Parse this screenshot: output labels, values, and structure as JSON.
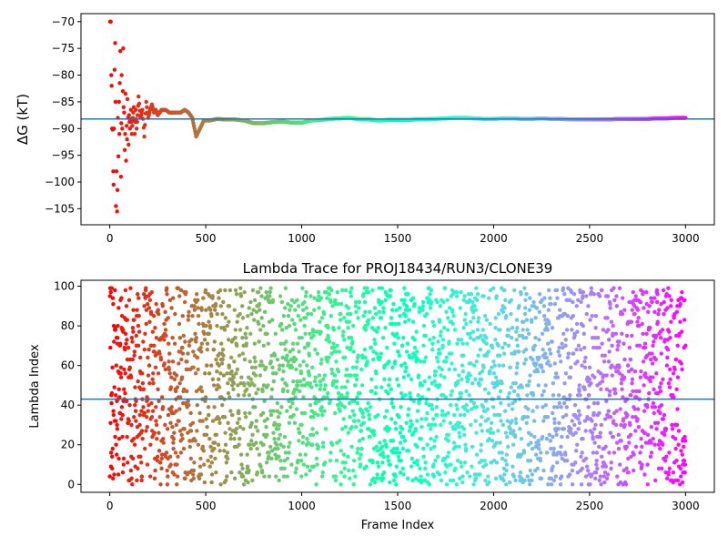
{
  "chart_data": [
    {
      "type": "scatter",
      "title": "",
      "xlabel": "",
      "ylabel": "ΔG (kT)",
      "xlim": [
        -150,
        3150
      ],
      "ylim": [
        -108,
        -68.5
      ],
      "xticks": [
        0,
        500,
        1000,
        1500,
        2000,
        2500,
        3000
      ],
      "yticks": [
        -105,
        -100,
        -95,
        -90,
        -85,
        -80,
        -75,
        -70
      ],
      "ytick_labels": [
        "−105",
        "−100",
        "−95",
        "−90",
        "−85",
        "−80",
        "−75",
        "−70"
      ],
      "hline": -88.2,
      "hline_color": "#1f77b4",
      "colormap": "rainbow (red → violet with frame index)",
      "frames": [
        0,
        3000
      ],
      "series": [
        {
          "points": [
            [
              2,
              -70
            ],
            [
              5,
              -70
            ],
            [
              8,
              -80
            ],
            [
              10,
              -82
            ],
            [
              12,
              -90
            ],
            [
              15,
              -90.2
            ],
            [
              18,
              -98
            ],
            [
              20,
              -100.5
            ],
            [
              22,
              -90
            ],
            [
              25,
              -79
            ],
            [
              28,
              -74
            ],
            [
              30,
              -85
            ],
            [
              32,
              -104.5
            ],
            [
              35,
              -98
            ],
            [
              38,
              -105.5
            ],
            [
              40,
              -101.5
            ],
            [
              42,
              -88
            ],
            [
              45,
              -95.2
            ],
            [
              48,
              -85
            ],
            [
              50,
              -91
            ],
            [
              52,
              -81.5
            ],
            [
              55,
              -75.5
            ],
            [
              58,
              -99
            ],
            [
              60,
              -89
            ],
            [
              62,
              -80
            ],
            [
              65,
              -90
            ],
            [
              68,
              -83
            ],
            [
              70,
              -75
            ],
            [
              72,
              -86
            ],
            [
              75,
              -87
            ],
            [
              78,
              -94
            ],
            [
              80,
              -91
            ],
            [
              82,
              -83.5
            ],
            [
              85,
              -96
            ],
            [
              88,
              -89.5
            ],
            [
              90,
              -92
            ],
            [
              92,
              -84.5
            ],
            [
              95,
              -88
            ],
            [
              98,
              -93
            ],
            [
              100,
              -87.5
            ],
            [
              105,
              -90
            ],
            [
              110,
              -86.5
            ],
            [
              115,
              -91
            ],
            [
              120,
              -88
            ],
            [
              125,
              -86
            ],
            [
              130,
              -91
            ],
            [
              135,
              -86.5
            ],
            [
              140,
              -90
            ],
            [
              145,
              -87.5
            ],
            [
              150,
              -84
            ],
            [
              160,
              -88
            ],
            [
              170,
              -86.5
            ],
            [
              180,
              -91.5
            ],
            [
              190,
              -85
            ],
            [
              200,
              -88
            ],
            [
              210,
              -86.5
            ],
            [
              220,
              -85.5
            ],
            [
              230,
              -87
            ],
            [
              240,
              -86.5
            ],
            [
              250,
              -87.5
            ],
            [
              270,
              -86.5
            ],
            [
              290,
              -86.5
            ],
            [
              310,
              -87
            ],
            [
              330,
              -87
            ],
            [
              350,
              -87
            ],
            [
              370,
              -87
            ],
            [
              390,
              -86.5
            ],
            [
              410,
              -87
            ],
            [
              430,
              -88
            ],
            [
              450,
              -91.5
            ],
            [
              470,
              -90
            ],
            [
              490,
              -88.5
            ],
            [
              520,
              -88.5
            ],
            [
              560,
              -88.2
            ],
            [
              600,
              -88.3
            ],
            [
              650,
              -88.3
            ],
            [
              700,
              -88.5
            ],
            [
              750,
              -89
            ],
            [
              800,
              -89
            ],
            [
              850,
              -88.8
            ],
            [
              900,
              -88.7
            ],
            [
              950,
              -88.9
            ],
            [
              1000,
              -88.9
            ],
            [
              1050,
              -88.5
            ],
            [
              1100,
              -88.4
            ],
            [
              1150,
              -88.2
            ],
            [
              1200,
              -88.1
            ],
            [
              1250,
              -88
            ],
            [
              1300,
              -88.3
            ],
            [
              1350,
              -88.3
            ],
            [
              1400,
              -88.5
            ],
            [
              1450,
              -88.4
            ],
            [
              1500,
              -88.4
            ],
            [
              1550,
              -88.4
            ],
            [
              1600,
              -88.3
            ],
            [
              1650,
              -88.3
            ],
            [
              1700,
              -88.2
            ],
            [
              1750,
              -88.1
            ],
            [
              1800,
              -88
            ],
            [
              1850,
              -88
            ],
            [
              1900,
              -88.1
            ],
            [
              1950,
              -88.2
            ],
            [
              2000,
              -88.2
            ],
            [
              2050,
              -88.1
            ],
            [
              2100,
              -88.1
            ],
            [
              2150,
              -88.2
            ],
            [
              2200,
              -88.2
            ],
            [
              2250,
              -88.1
            ],
            [
              2300,
              -88.2
            ],
            [
              2350,
              -88.2
            ],
            [
              2400,
              -88.3
            ],
            [
              2450,
              -88.3
            ],
            [
              2500,
              -88.3
            ],
            [
              2550,
              -88.3
            ],
            [
              2600,
              -88.3
            ],
            [
              2650,
              -88.2
            ],
            [
              2700,
              -88.2
            ],
            [
              2750,
              -88.2
            ],
            [
              2800,
              -88.2
            ],
            [
              2850,
              -88.1
            ],
            [
              2900,
              -88.1
            ],
            [
              2950,
              -88
            ],
            [
              3000,
              -88
            ]
          ]
        }
      ]
    },
    {
      "type": "scatter",
      "title": "Lambda Trace for PROJ18434/RUN3/CLONE39",
      "xlabel": "Frame Index",
      "ylabel": "Lambda Index",
      "xlim": [
        -150,
        3150
      ],
      "ylim": [
        -4,
        103
      ],
      "xticks": [
        0,
        500,
        1000,
        1500,
        2000,
        2500,
        3000
      ],
      "yticks": [
        0,
        20,
        40,
        60,
        80,
        100
      ],
      "hline": 43,
      "hline_color": "#1f77b4",
      "colormap": "rainbow (red → violet with frame index)",
      "frames": [
        0,
        3000
      ],
      "lambda_range": [
        0,
        99
      ],
      "frame_step": 1,
      "note_density": "one lambda value (0–99) per frame, scattered uniformly"
    }
  ]
}
